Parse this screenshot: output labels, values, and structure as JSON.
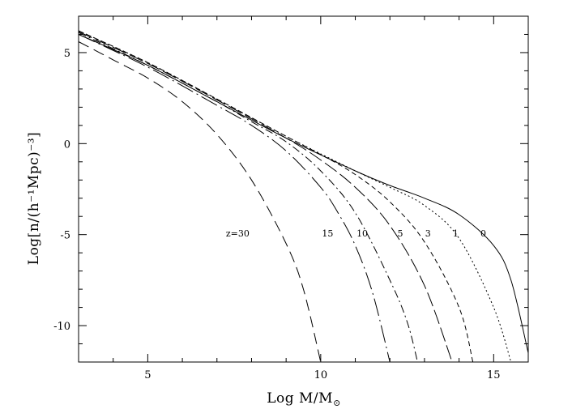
{
  "chart_data": {
    "type": "line",
    "xlabel": "Log  M/M",
    "xlabel_sub": "⊙",
    "ylabel": "Log[n/(h⁻¹Mpc)⁻³]",
    "xlim": [
      3,
      16
    ],
    "ylim": [
      -12,
      7
    ],
    "x_ticks": [
      5,
      10,
      15
    ],
    "y_ticks": [
      5,
      0,
      -5,
      -10
    ],
    "x_minor_step": 1,
    "y_minor_step": 1,
    "grid": false,
    "series": [
      {
        "name": "z=30",
        "dash": "14 7",
        "label": {
          "text": "z=30",
          "x": 7.6,
          "y": -5.1
        },
        "points": [
          [
            3,
            5.6
          ],
          [
            4,
            4.6
          ],
          [
            5,
            3.6
          ],
          [
            6,
            2.3
          ],
          [
            7,
            0.5
          ],
          [
            8,
            -2.0
          ],
          [
            9,
            -5.5
          ],
          [
            9.5,
            -8.0
          ],
          [
            10,
            -12
          ]
        ]
      },
      {
        "name": "15",
        "dash": "22 5 2 5",
        "label": {
          "text": "15",
          "x": 10.2,
          "y": -5.1
        },
        "points": [
          [
            3,
            6.0
          ],
          [
            5,
            4.2
          ],
          [
            7,
            2.1
          ],
          [
            8,
            1.0
          ],
          [
            9,
            -0.4
          ],
          [
            10,
            -2.4
          ],
          [
            10.5,
            -3.8
          ],
          [
            11,
            -5.6
          ],
          [
            11.5,
            -8.2
          ],
          [
            12,
            -12
          ]
        ]
      },
      {
        "name": "10",
        "dash": "10 4 2 4",
        "label": {
          "text": "10",
          "x": 11.2,
          "y": -5.1
        },
        "points": [
          [
            3,
            6.1
          ],
          [
            5,
            4.3
          ],
          [
            7,
            2.3
          ],
          [
            8,
            1.2
          ],
          [
            9,
            0.1
          ],
          [
            10,
            -1.5
          ],
          [
            11,
            -3.8
          ],
          [
            12,
            -7.5
          ],
          [
            12.5,
            -9.8
          ],
          [
            12.8,
            -12
          ]
        ]
      },
      {
        "name": "5",
        "dash": "18 5",
        "label": {
          "text": "5",
          "x": 12.3,
          "y": -5.1
        },
        "points": [
          [
            3,
            6.15
          ],
          [
            5,
            4.4
          ],
          [
            7,
            2.4
          ],
          [
            9,
            0.3
          ],
          [
            10,
            -0.9
          ],
          [
            11,
            -2.4
          ],
          [
            12,
            -4.5
          ],
          [
            13,
            -7.8
          ],
          [
            13.8,
            -12
          ]
        ]
      },
      {
        "name": "3",
        "dash": "6 4",
        "label": {
          "text": "3",
          "x": 13.1,
          "y": -5.1
        },
        "points": [
          [
            3,
            6.2
          ],
          [
            5,
            4.45
          ],
          [
            7,
            2.45
          ],
          [
            9,
            0.4
          ],
          [
            10,
            -0.6
          ],
          [
            11,
            -1.7
          ],
          [
            12,
            -3.2
          ],
          [
            13,
            -5.4
          ],
          [
            14,
            -9.0
          ],
          [
            14.4,
            -12
          ]
        ]
      },
      {
        "name": "1",
        "dash": "2 3",
        "label": {
          "text": "1",
          "x": 13.9,
          "y": -5.1
        },
        "points": [
          [
            3,
            6.2
          ],
          [
            5,
            4.45
          ],
          [
            7,
            2.45
          ],
          [
            9,
            0.4
          ],
          [
            11,
            -1.5
          ],
          [
            12,
            -2.4
          ],
          [
            13,
            -3.4
          ],
          [
            14,
            -5.2
          ],
          [
            15,
            -9.0
          ],
          [
            15.5,
            -12
          ]
        ]
      },
      {
        "name": "0",
        "dash": "",
        "label": {
          "text": "0",
          "x": 14.7,
          "y": -5.1
        },
        "points": [
          [
            3,
            6.0
          ],
          [
            5,
            4.3
          ],
          [
            7,
            2.3
          ],
          [
            9,
            0.3
          ],
          [
            11,
            -1.5
          ],
          [
            12,
            -2.3
          ],
          [
            13,
            -3.0
          ],
          [
            14,
            -3.9
          ],
          [
            15,
            -5.6
          ],
          [
            15.5,
            -7.5
          ],
          [
            16,
            -11.5
          ]
        ]
      }
    ]
  }
}
